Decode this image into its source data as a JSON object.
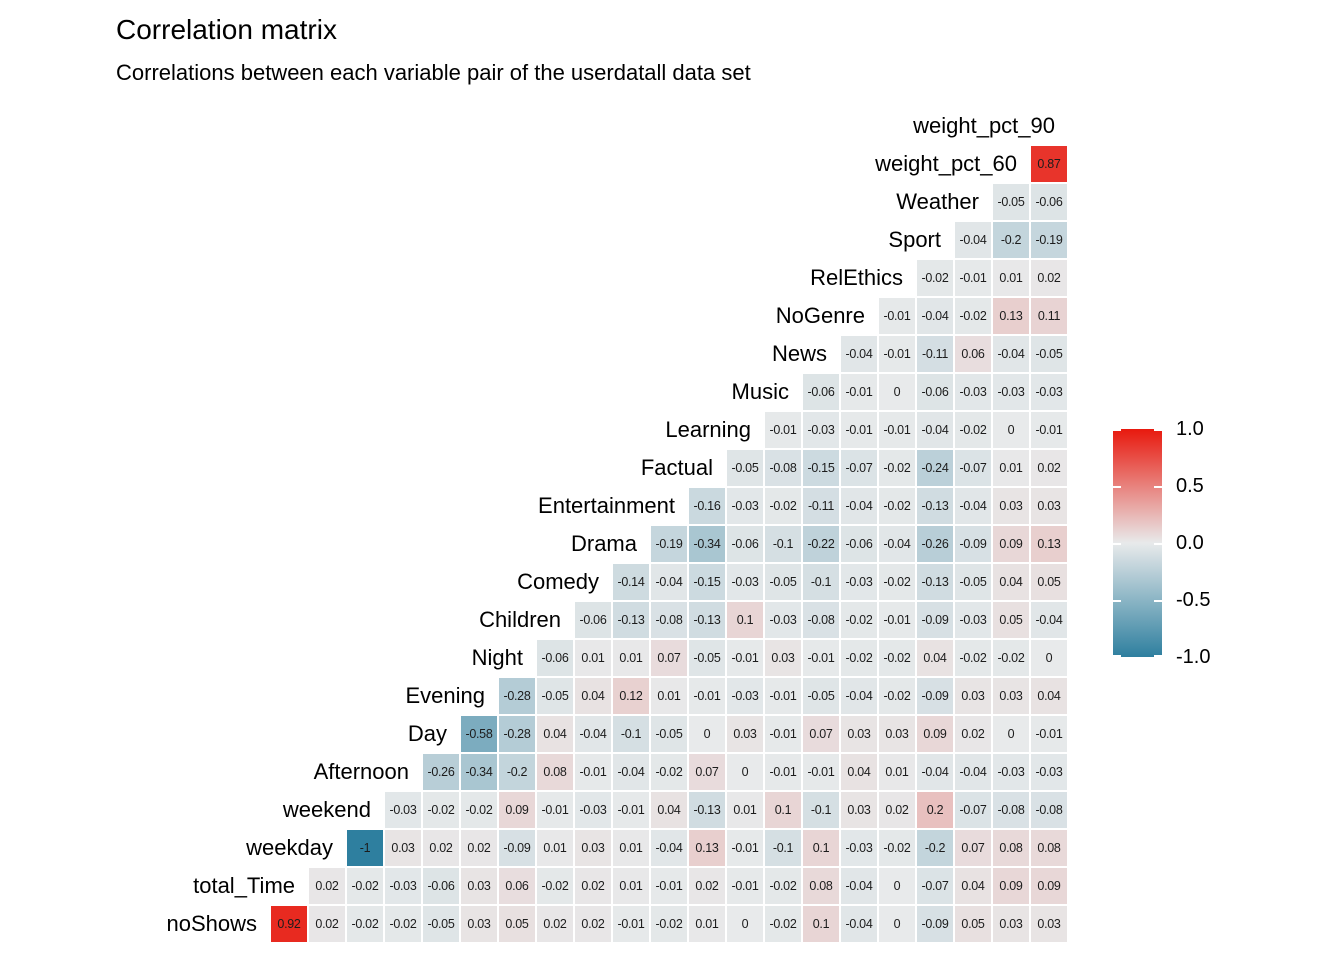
{
  "header": {
    "title": "Correlation matrix",
    "subtitle": "Correlations between each variable pair of the userdatall data set"
  },
  "chart_data": {
    "type": "heatmap",
    "title": "Correlation matrix",
    "subtitle": "Correlations between each variable pair of the userdatall data set",
    "value_range": [
      -1,
      1
    ],
    "variables": [
      "weight_pct_90",
      "weight_pct_60",
      "Weather",
      "Sport",
      "RelEthics",
      "NoGenre",
      "News",
      "Music",
      "Learning",
      "Factual",
      "Entertainment",
      "Drama",
      "Comedy",
      "Children",
      "Night",
      "Evening",
      "Day",
      "Afternoon",
      "weekend",
      "weekday",
      "total_Time",
      "noShows"
    ],
    "rows": [
      {
        "label": "weight_pct_90",
        "values": []
      },
      {
        "label": "weight_pct_60",
        "values": [
          0.87
        ]
      },
      {
        "label": "Weather",
        "values": [
          -0.05,
          -0.06
        ]
      },
      {
        "label": "Sport",
        "values": [
          -0.04,
          -0.2,
          -0.19
        ]
      },
      {
        "label": "RelEthics",
        "values": [
          -0.02,
          -0.01,
          0.01,
          0.02
        ]
      },
      {
        "label": "NoGenre",
        "values": [
          -0.01,
          -0.04,
          -0.02,
          0.13,
          0.11
        ]
      },
      {
        "label": "News",
        "values": [
          -0.04,
          -0.01,
          -0.11,
          0.06,
          -0.04,
          -0.05
        ]
      },
      {
        "label": "Music",
        "values": [
          -0.06,
          -0.01,
          0,
          -0.06,
          -0.03,
          -0.03,
          -0.03
        ]
      },
      {
        "label": "Learning",
        "values": [
          -0.01,
          -0.03,
          -0.01,
          -0.01,
          -0.04,
          -0.02,
          0,
          -0.01
        ]
      },
      {
        "label": "Factual",
        "values": [
          -0.05,
          -0.08,
          -0.15,
          -0.07,
          -0.02,
          -0.24,
          -0.07,
          0.01,
          0.02
        ]
      },
      {
        "label": "Entertainment",
        "values": [
          -0.16,
          -0.03,
          -0.02,
          -0.11,
          -0.04,
          -0.02,
          -0.13,
          -0.04,
          0.03,
          0.03
        ]
      },
      {
        "label": "Drama",
        "values": [
          -0.19,
          -0.34,
          -0.06,
          -0.1,
          -0.22,
          -0.06,
          -0.04,
          -0.26,
          -0.09,
          0.09,
          0.13
        ]
      },
      {
        "label": "Comedy",
        "values": [
          -0.14,
          -0.04,
          -0.15,
          -0.03,
          -0.05,
          -0.1,
          -0.03,
          -0.02,
          -0.13,
          -0.05,
          0.04,
          0.05
        ]
      },
      {
        "label": "Children",
        "values": [
          -0.06,
          -0.13,
          -0.08,
          -0.13,
          0.1,
          -0.03,
          -0.08,
          -0.02,
          -0.01,
          -0.09,
          -0.03,
          0.05,
          -0.04
        ]
      },
      {
        "label": "Night",
        "values": [
          -0.06,
          0.01,
          0.01,
          0.07,
          -0.05,
          -0.01,
          0.03,
          -0.01,
          -0.02,
          -0.02,
          0.04,
          -0.02,
          -0.02,
          0
        ]
      },
      {
        "label": "Evening",
        "values": [
          -0.28,
          -0.05,
          0.04,
          0.12,
          0.01,
          -0.01,
          -0.03,
          -0.01,
          -0.05,
          -0.04,
          -0.02,
          -0.09,
          0.03,
          0.03,
          0.04
        ]
      },
      {
        "label": "Day",
        "values": [
          -0.58,
          -0.28,
          0.04,
          -0.04,
          -0.1,
          -0.05,
          0,
          0.03,
          -0.01,
          0.07,
          0.03,
          0.03,
          0.09,
          0.02,
          0,
          -0.01
        ]
      },
      {
        "label": "Afternoon",
        "values": [
          -0.26,
          -0.34,
          -0.2,
          0.08,
          -0.01,
          -0.04,
          -0.02,
          0.07,
          0,
          -0.01,
          -0.01,
          0.04,
          0.01,
          -0.04,
          -0.04,
          -0.03,
          -0.03
        ]
      },
      {
        "label": "weekend",
        "values": [
          -0.03,
          -0.02,
          -0.02,
          0.09,
          -0.01,
          -0.03,
          -0.01,
          0.04,
          -0.13,
          0.01,
          0.1,
          -0.1,
          0.03,
          0.02,
          0.2,
          -0.07,
          -0.08,
          -0.08
        ]
      },
      {
        "label": "weekday",
        "values": [
          -1,
          0.03,
          0.02,
          0.02,
          -0.09,
          0.01,
          0.03,
          0.01,
          -0.04,
          0.13,
          -0.01,
          -0.1,
          0.1,
          -0.03,
          -0.02,
          -0.2,
          0.07,
          0.08,
          0.08
        ]
      },
      {
        "label": "total_Time",
        "values": [
          0.02,
          -0.02,
          -0.03,
          -0.06,
          0.03,
          0.06,
          -0.02,
          0.02,
          0.01,
          -0.01,
          0.02,
          -0.01,
          -0.02,
          0.08,
          -0.04,
          0,
          -0.07,
          0.04,
          0.09,
          0.09
        ]
      },
      {
        "label": "noShows",
        "values": [
          0.92,
          0.02,
          -0.02,
          -0.02,
          -0.05,
          0.03,
          0.05,
          0.02,
          0.02,
          -0.01,
          -0.02,
          0.01,
          0,
          -0.02,
          0.1,
          -0.04,
          0,
          -0.09,
          0.05,
          0.03,
          0.03
        ]
      }
    ],
    "colors": {
      "high": "#e8190e",
      "mid": "#e8eaeb",
      "low": "#2e7f9f"
    },
    "legend": {
      "ticks": [
        "1.0",
        "0.5",
        "0.0",
        "-0.5",
        "-1.0"
      ],
      "position": "right"
    }
  }
}
